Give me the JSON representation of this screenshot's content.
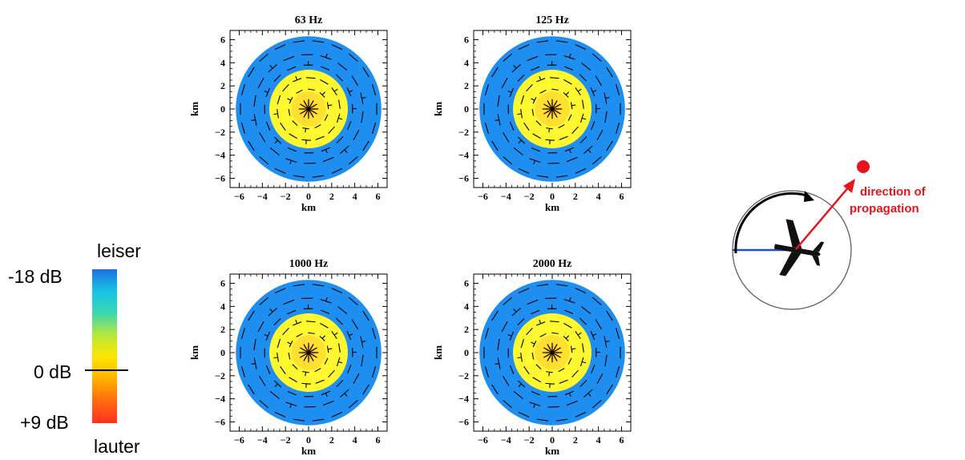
{
  "colorbar": {
    "top_label": "leiser",
    "bottom_label": "lauter",
    "tick_labels": [
      "-18 dB",
      "0 dB",
      "+9 dB"
    ],
    "scale_db": [
      -18,
      0,
      9
    ],
    "stops": [
      "#1e6fe0",
      "#18c4e6",
      "#3ad7b0",
      "#b8e83a",
      "#ffe600",
      "#ffb000",
      "#ff6a10",
      "#ff3020"
    ]
  },
  "chart_data": [
    {
      "type": "heatmap",
      "title": "63 Hz",
      "xlabel": "km",
      "ylabel": "km",
      "xlim": [
        -6.8,
        6.8
      ],
      "ylim": [
        -6.8,
        6.8
      ],
      "ticks": [
        -6,
        -4,
        -2,
        0,
        2,
        4,
        6
      ],
      "tick_labels": [
        "−6",
        "−4",
        "−2",
        "0",
        "2",
        "4",
        "6"
      ],
      "outer_radius_km": 6.3,
      "inner_radius_km": 3.4,
      "zones": [
        {
          "radius_km": 6.3,
          "color": "#1e8ef0"
        },
        {
          "radius_km": 3.4,
          "color": "#fff830"
        },
        {
          "radius_km": 1.5,
          "color": "#ffe030"
        },
        {
          "radius_km": 0.6,
          "color": "#ffc820"
        }
      ]
    },
    {
      "type": "heatmap",
      "title": "125 Hz",
      "xlabel": "km",
      "ylabel": "km",
      "xlim": [
        -6.8,
        6.8
      ],
      "ylim": [
        -6.8,
        6.8
      ],
      "ticks": [
        -6,
        -4,
        -2,
        0,
        2,
        4,
        6
      ],
      "tick_labels": [
        "−6",
        "−4",
        "−2",
        "0",
        "2",
        "4",
        "6"
      ],
      "outer_radius_km": 6.3,
      "inner_radius_km": 3.4,
      "zones": [
        {
          "radius_km": 6.3,
          "color": "#1e8ef0"
        },
        {
          "radius_km": 3.4,
          "color": "#fff830"
        },
        {
          "radius_km": 1.5,
          "color": "#ffe030"
        },
        {
          "radius_km": 0.6,
          "color": "#ffc820"
        }
      ]
    },
    {
      "type": "heatmap",
      "title": "1000 Hz",
      "xlabel": "km",
      "ylabel": "km",
      "xlim": [
        -6.8,
        6.8
      ],
      "ylim": [
        -6.8,
        6.8
      ],
      "ticks": [
        -6,
        -4,
        -2,
        0,
        2,
        4,
        6
      ],
      "tick_labels": [
        "−6",
        "−4",
        "−2",
        "0",
        "2",
        "4",
        "6"
      ],
      "outer_radius_km": 6.3,
      "inner_radius_km": 3.4,
      "zones": [
        {
          "radius_km": 6.3,
          "color": "#1e8ef0"
        },
        {
          "radius_km": 3.4,
          "color": "#fff830"
        },
        {
          "radius_km": 1.5,
          "color": "#ffe030"
        },
        {
          "radius_km": 0.6,
          "color": "#ffc820"
        }
      ]
    },
    {
      "type": "heatmap",
      "title": "2000 Hz",
      "xlabel": "km",
      "ylabel": "km",
      "xlim": [
        -6.8,
        6.8
      ],
      "ylim": [
        -6.8,
        6.8
      ],
      "ticks": [
        -6,
        -4,
        -2,
        0,
        2,
        4,
        6
      ],
      "tick_labels": [
        "−6",
        "−4",
        "−2",
        "0",
        "2",
        "4",
        "6"
      ],
      "outer_radius_km": 6.3,
      "inner_radius_km": 3.4,
      "zones": [
        {
          "radius_km": 6.3,
          "color": "#1e8ef0"
        },
        {
          "radius_km": 3.4,
          "color": "#fff830"
        },
        {
          "radius_km": 1.5,
          "color": "#ffe030"
        },
        {
          "radius_km": 0.6,
          "color": "#ffc820"
        }
      ]
    }
  ],
  "diagram": {
    "label_line1": "direction of",
    "label_line2": "propagation",
    "arrow_color": "#e8141c",
    "baseline_color": "#1a4fd8"
  }
}
